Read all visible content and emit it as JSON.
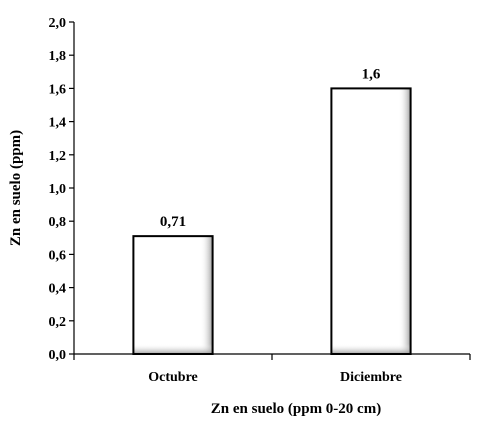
{
  "chart_data": {
    "type": "bar",
    "categories": [
      "Octubre",
      "Diciembre"
    ],
    "values": [
      0.71,
      1.6
    ],
    "data_labels": [
      "0,71",
      "1,6"
    ],
    "xlabel": "Zn en suelo (ppm 0-20 cm)",
    "ylabel": "Zn en suelo  (ppm)",
    "ylim": [
      0,
      2.0
    ],
    "yticks": [
      0.0,
      0.2,
      0.4,
      0.6,
      0.8,
      1.0,
      1.2,
      1.4,
      1.6,
      1.8,
      2.0
    ],
    "ytick_labels": [
      "0,0",
      "0,2",
      "0,4",
      "0,6",
      "0,8",
      "1,0",
      "1,2",
      "1,4",
      "1,6",
      "1,8",
      "2,0"
    ],
    "grid": false,
    "legend": "none",
    "colors": {
      "bar_fill": "#ffffff",
      "bar_edge": "#000000",
      "bar_shade": "#9a9a9a"
    }
  }
}
